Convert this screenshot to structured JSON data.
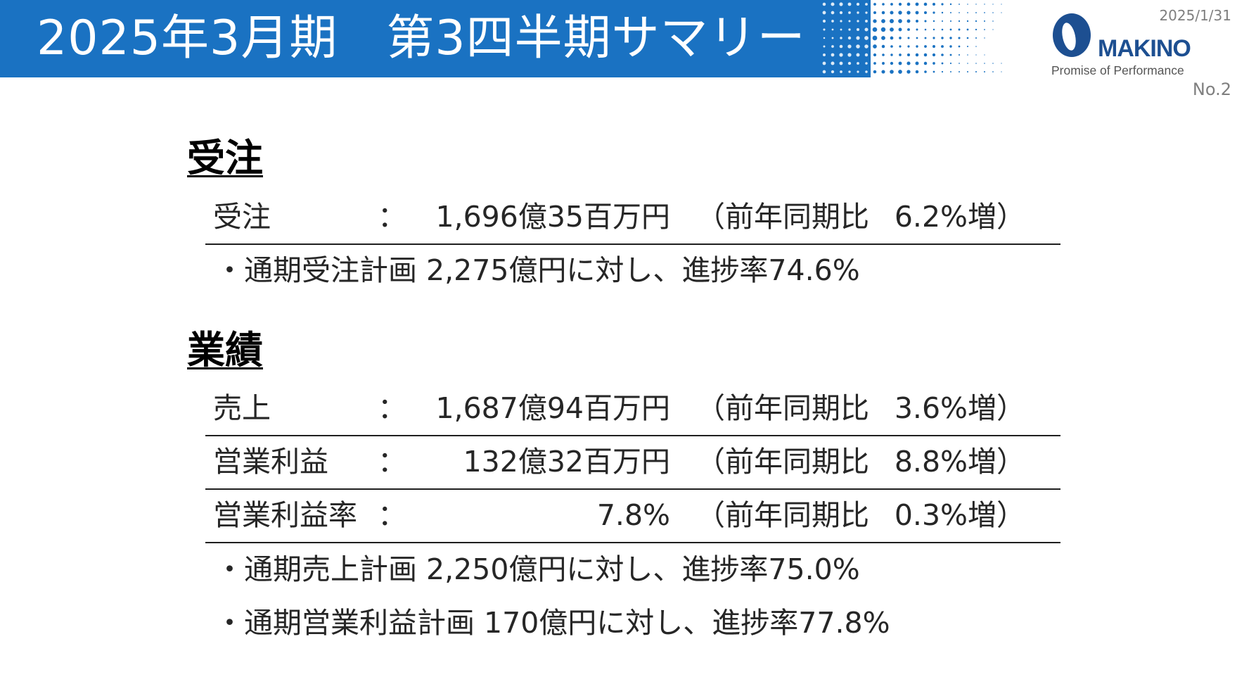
{
  "header": {
    "title": "2025年3月期　第3四半期サマリー",
    "date": "2025/1/31",
    "page_number": "No.2",
    "colors": {
      "title_bar": "#1a72c2",
      "title_text": "#ffffff",
      "logo": "#1d4f91"
    }
  },
  "logo": {
    "name": "MAKINO",
    "tagline": "Promise of Performance",
    "icon": "makino-logo-icon"
  },
  "orders": {
    "heading": "受注",
    "rows": [
      {
        "label": "受注",
        "colon": "：",
        "value": "1,696億35百万円",
        "yoy_label": "（前年同期比",
        "yoy_value": "6.2%増）"
      }
    ],
    "notes": [
      "・通期受注計画 2,275億円に対し、進捗率74.6%"
    ]
  },
  "results": {
    "heading": "業績",
    "rows": [
      {
        "label": "売上",
        "colon": "：",
        "value": "1,687億94百万円",
        "yoy_label": "（前年同期比",
        "yoy_value": "3.6%増）"
      },
      {
        "label": "営業利益",
        "colon": "：",
        "value": "132億32百万円",
        "yoy_label": "（前年同期比",
        "yoy_value": "8.8%増）"
      },
      {
        "label": "営業利益率",
        "colon": "：",
        "value": "7.8%",
        "yoy_label": "（前年同期比",
        "yoy_value": "0.3%増）"
      }
    ],
    "notes": [
      "・通期売上計画 2,250億円に対し、進捗率75.0%",
      "・通期営業利益計画 170億円に対し、進捗率77.8%"
    ]
  }
}
